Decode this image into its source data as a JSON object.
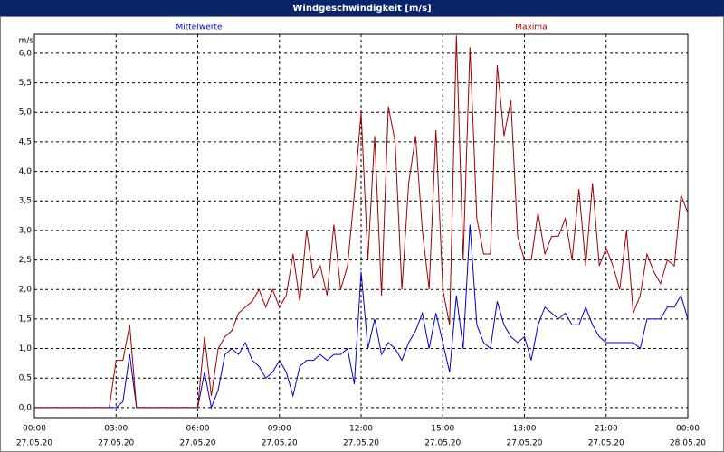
{
  "chart_data": {
    "type": "line",
    "title": "Windgeschwindigkeit [m/s]",
    "ylabel": "m/s",
    "x": [
      0,
      0.25,
      0.5,
      0.75,
      1,
      1.25,
      1.5,
      1.75,
      2,
      2.25,
      2.5,
      2.75,
      3,
      3.25,
      3.5,
      3.75,
      4,
      4.25,
      4.5,
      4.75,
      5,
      5.25,
      5.5,
      5.75,
      6,
      6.25,
      6.5,
      6.75,
      7,
      7.25,
      7.5,
      7.75,
      8,
      8.25,
      8.5,
      8.75,
      9,
      9.25,
      9.5,
      9.75,
      10,
      10.25,
      10.5,
      10.75,
      11,
      11.25,
      11.5,
      11.75,
      12,
      12.25,
      12.5,
      12.75,
      13,
      13.25,
      13.5,
      13.75,
      14,
      14.25,
      14.5,
      14.75,
      15,
      15.25,
      15.5,
      15.75,
      16,
      16.25,
      16.5,
      16.75,
      17,
      17.25,
      17.5,
      17.75,
      18,
      18.25,
      18.5,
      18.75,
      19,
      19.25,
      19.5,
      19.75,
      20,
      20.25,
      20.5,
      20.75,
      21,
      21.25,
      21.5,
      21.75,
      22,
      22.25,
      22.5,
      22.75,
      23,
      23.25,
      23.5,
      23.75,
      24
    ],
    "series": [
      {
        "name": "Mittelwerte",
        "color": "#0000cc",
        "values": [
          0,
          0,
          0,
          0,
          0,
          0,
          0,
          0,
          0,
          0,
          0,
          0,
          0,
          0.1,
          0.9,
          0,
          0,
          0,
          0,
          0,
          0,
          0,
          0,
          0,
          0,
          0.6,
          0,
          0.3,
          0.9,
          1.0,
          0.9,
          1.1,
          0.8,
          0.7,
          0.5,
          0.6,
          0.8,
          0.6,
          0.2,
          0.7,
          0.8,
          0.8,
          0.9,
          0.8,
          0.9,
          0.9,
          1.0,
          0.4,
          2.3,
          1.0,
          1.5,
          0.9,
          1.1,
          1.0,
          0.8,
          1.1,
          1.3,
          1.6,
          1.0,
          1.6,
          1.1,
          0.6,
          1.9,
          1.0,
          3.1,
          1.4,
          1.1,
          1.0,
          1.8,
          1.4,
          1.2,
          1.1,
          1.2,
          0.8,
          1.4,
          1.7,
          1.6,
          1.5,
          1.6,
          1.4,
          1.4,
          1.7,
          1.4,
          1.2,
          1.1,
          1.1,
          1.1,
          1.1,
          1.1,
          1.0,
          1.5,
          1.5,
          1.5,
          1.7,
          1.7,
          1.9,
          1.5
        ]
      },
      {
        "name": "Maxima",
        "color": "#a00000",
        "values": [
          0,
          0,
          0,
          0,
          0,
          0,
          0,
          0,
          0,
          0,
          0,
          0,
          0.8,
          0.8,
          1.4,
          0,
          0,
          0,
          0,
          0,
          0,
          0,
          0,
          0,
          0,
          1.2,
          0.2,
          1.0,
          1.2,
          1.3,
          1.6,
          1.7,
          1.8,
          2.0,
          1.7,
          2.0,
          1.7,
          1.9,
          2.6,
          1.8,
          3.0,
          2.2,
          2.4,
          1.9,
          3.1,
          2.0,
          2.4,
          3.6,
          5.0,
          2.5,
          4.6,
          1.9,
          5.1,
          4.5,
          2.0,
          3.8,
          4.6,
          3.0,
          2.0,
          4.7,
          2.0,
          1.4,
          6.3,
          2.5,
          6.1,
          3.2,
          2.6,
          2.6,
          5.8,
          4.6,
          5.2,
          2.9,
          2.5,
          2.5,
          3.3,
          2.6,
          2.9,
          2.9,
          3.2,
          2.5,
          3.7,
          2.4,
          3.8,
          2.4,
          2.7,
          2.4,
          2.0,
          3.0,
          1.6,
          1.9,
          2.6,
          2.3,
          2.1,
          2.5,
          2.4,
          3.6,
          3.3
        ]
      }
    ],
    "xlim": [
      0,
      24
    ],
    "xticks": [
      {
        "value": 0,
        "label": "00:00"
      },
      {
        "value": 3,
        "label": "03:00"
      },
      {
        "value": 6,
        "label": "06:00"
      },
      {
        "value": 9,
        "label": "09:00"
      },
      {
        "value": 12,
        "label": "12:00"
      },
      {
        "value": 15,
        "label": "15:00"
      },
      {
        "value": 18,
        "label": "18:00"
      },
      {
        "value": 21,
        "label": "21:00"
      },
      {
        "value": 24,
        "label": "00:00"
      }
    ],
    "xtick_dates": [
      "27.05.20",
      "27.05.20",
      "27.05.20",
      "27.05.20",
      "27.05.20",
      "27.05.20",
      "27.05.20",
      "27.05.20",
      "28.05.20"
    ],
    "ylim": [
      -0.17,
      6.32
    ],
    "yticks": [
      {
        "value": 0,
        "label": "0,0"
      },
      {
        "value": 0.5,
        "label": "0,5"
      },
      {
        "value": 1,
        "label": "1,0"
      },
      {
        "value": 1.5,
        "label": "1,5"
      },
      {
        "value": 2,
        "label": "2,0"
      },
      {
        "value": 2.5,
        "label": "2,5"
      },
      {
        "value": 3,
        "label": "3,0"
      },
      {
        "value": 3.5,
        "label": "3,5"
      },
      {
        "value": 4,
        "label": "4,0"
      },
      {
        "value": 4.5,
        "label": "4,5"
      },
      {
        "value": 5,
        "label": "5,0"
      },
      {
        "value": 5.5,
        "label": "5,5"
      },
      {
        "value": 6,
        "label": "6,0"
      }
    ],
    "grid": true
  }
}
